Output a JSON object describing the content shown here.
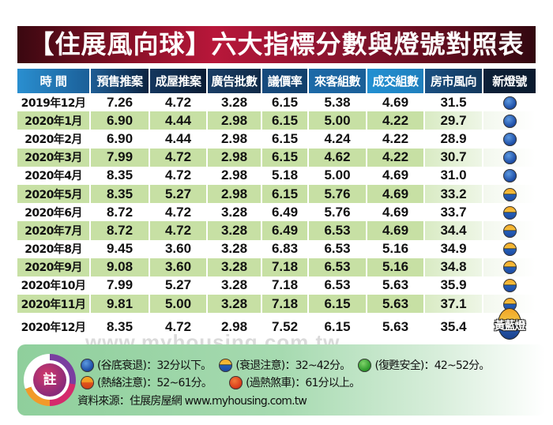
{
  "title": "【住展風向球】六大指標分數與燈號對照表",
  "colors": {
    "title_red": "#b8173a",
    "header_blue": "#1b5f98",
    "row_green": "#c7e0a4",
    "note_green": "#a6dab0"
  },
  "table": {
    "headers": [
      "時 間",
      "預售推案",
      "成屋推案",
      "廣告批數",
      "議價率",
      "來客組數",
      "成交組數",
      "房市風向",
      "新燈號"
    ],
    "rows": [
      {
        "time": "2019年12月",
        "presale": "7.26",
        "completed": "4.72",
        "ads": "3.28",
        "bargain": "6.15",
        "visitors": "5.38",
        "deals": "4.69",
        "index": "31.5",
        "light": "blue",
        "light_label": "谷底衰退"
      },
      {
        "time": "2020年1月",
        "presale": "6.90",
        "completed": "4.44",
        "ads": "2.98",
        "bargain": "6.15",
        "visitors": "5.00",
        "deals": "4.22",
        "index": "29.7",
        "light": "blue",
        "light_label": "谷底衰退"
      },
      {
        "time": "2020年2月",
        "presale": "6.90",
        "completed": "4.44",
        "ads": "2.98",
        "bargain": "6.15",
        "visitors": "4.24",
        "deals": "4.22",
        "index": "28.9",
        "light": "blue",
        "light_label": "谷底衰退"
      },
      {
        "time": "2020年3月",
        "presale": "7.99",
        "completed": "4.72",
        "ads": "2.98",
        "bargain": "6.15",
        "visitors": "4.62",
        "deals": "4.22",
        "index": "30.7",
        "light": "blue",
        "light_label": "谷底衰退"
      },
      {
        "time": "2020年4月",
        "presale": "8.35",
        "completed": "4.72",
        "ads": "2.98",
        "bargain": "5.18",
        "visitors": "5.00",
        "deals": "4.69",
        "index": "31.0",
        "light": "blue",
        "light_label": "谷底衰退"
      },
      {
        "time": "2020年5月",
        "presale": "8.35",
        "completed": "5.27",
        "ads": "2.98",
        "bargain": "6.15",
        "visitors": "5.76",
        "deals": "4.69",
        "index": "33.2",
        "light": "yellow-blue",
        "light_label": "衰退注意"
      },
      {
        "time": "2020年6月",
        "presale": "8.72",
        "completed": "4.72",
        "ads": "3.28",
        "bargain": "6.49",
        "visitors": "5.76",
        "deals": "4.69",
        "index": "33.7",
        "light": "yellow-blue",
        "light_label": "衰退注意"
      },
      {
        "time": "2020年7月",
        "presale": "8.72",
        "completed": "4.72",
        "ads": "3.28",
        "bargain": "6.49",
        "visitors": "6.53",
        "deals": "4.69",
        "index": "34.4",
        "light": "yellow-blue",
        "light_label": "衰退注意"
      },
      {
        "time": "2020年8月",
        "presale": "9.45",
        "completed": "3.60",
        "ads": "3.28",
        "bargain": "6.83",
        "visitors": "6.53",
        "deals": "5.16",
        "index": "34.9",
        "light": "yellow-blue",
        "light_label": "衰退注意"
      },
      {
        "time": "2020年9月",
        "presale": "9.08",
        "completed": "3.60",
        "ads": "3.28",
        "bargain": "7.18",
        "visitors": "6.53",
        "deals": "5.16",
        "index": "34.8",
        "light": "yellow-blue",
        "light_label": "衰退注意"
      },
      {
        "time": "2020年10月",
        "presale": "7.99",
        "completed": "5.27",
        "ads": "3.28",
        "bargain": "7.18",
        "visitors": "6.53",
        "deals": "5.63",
        "index": "35.9",
        "light": "yellow-blue",
        "light_label": "衰退注意"
      },
      {
        "time": "2020年11月",
        "presale": "9.81",
        "completed": "5.00",
        "ads": "3.28",
        "bargain": "7.18",
        "visitors": "6.15",
        "deals": "5.63",
        "index": "37.1",
        "light": "yellow-blue",
        "light_label": "衰退注意"
      },
      {
        "time": "2020年12月",
        "presale": "8.35",
        "completed": "4.72",
        "ads": "2.98",
        "bargain": "7.52",
        "visitors": "6.15",
        "deals": "5.63",
        "index": "35.4",
        "light": "yellow-blue-badge",
        "light_label": "黃藍燈"
      }
    ]
  },
  "watermark": "www.myhousing.com.tw",
  "note": {
    "badge": "註",
    "legend": [
      {
        "icon": "blue",
        "label": "(谷底衰退)：32分以下。"
      },
      {
        "icon": "yellow-blue",
        "label": "(衰退注意)：32~42分。"
      },
      {
        "icon": "green",
        "label": "(復甦安全)：42~52分。"
      },
      {
        "icon": "orange",
        "label": "(熱絡注意)：52~61分。"
      },
      {
        "icon": "red",
        "label": "(過熱煞車)：61分以上。"
      }
    ],
    "source": "資料來源：住展房屋網 www.myhousing.com.tw"
  }
}
